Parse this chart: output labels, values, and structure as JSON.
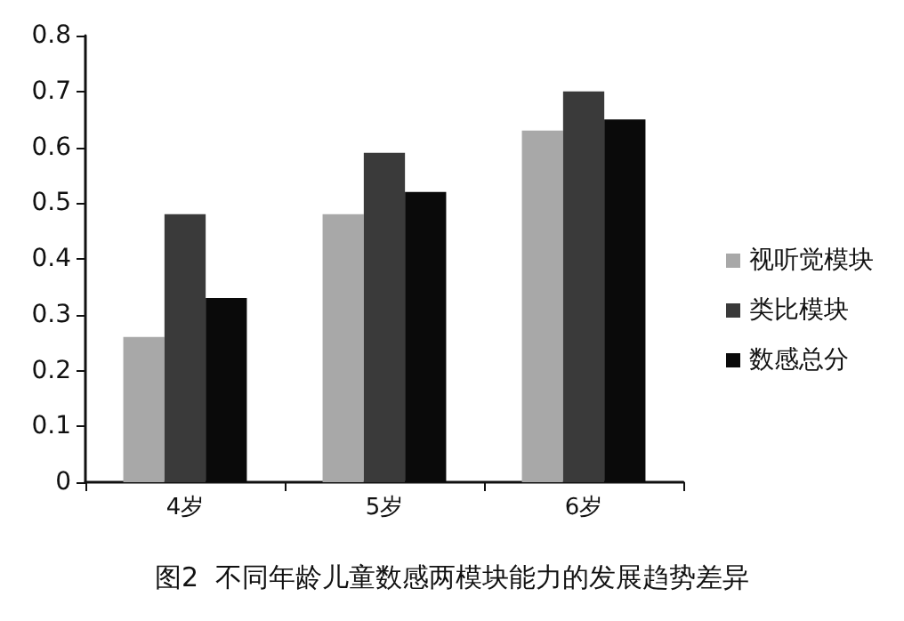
{
  "chart_data": {
    "type": "bar",
    "title": "图2  不同年龄儿童数感两模块能力的发展趋势差异",
    "categories": [
      "4岁",
      "5岁",
      "6岁"
    ],
    "series": [
      {
        "name": "视听觉模块",
        "color": "#a8a8a8",
        "values": [
          0.26,
          0.48,
          0.63
        ]
      },
      {
        "name": "类比模块",
        "color": "#3a3a3a",
        "values": [
          0.48,
          0.59,
          0.7
        ]
      },
      {
        "name": "数感总分",
        "color": "#0a0a0a",
        "values": [
          0.33,
          0.52,
          0.65
        ]
      }
    ],
    "ylim": [
      0,
      0.8
    ],
    "yticks": [
      0,
      0.1,
      0.2,
      0.3,
      0.4,
      0.5,
      0.6,
      0.7,
      0.8
    ],
    "grid": false,
    "legend": "right"
  }
}
